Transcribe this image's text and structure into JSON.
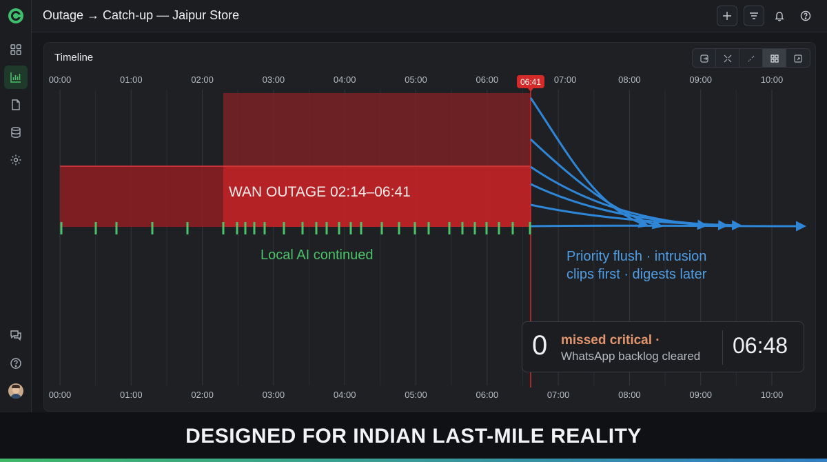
{
  "header": {
    "title": "Outage → Catch-up — Jaipur Store"
  },
  "panel": {
    "title": "Timeline",
    "ticks": [
      "00:00",
      "01:00",
      "02:00",
      "03:00",
      "04:00",
      "05:00",
      "06:00",
      "07:00",
      "08:00",
      "09:00",
      "10:00"
    ],
    "marker_label": "06:41",
    "outage_label": "WAN OUTAGE 02:14–06:41",
    "local_label": "Local AI continued",
    "flush_line1": "Priority flush · intrusion",
    "flush_line2": "clips first · digests later"
  },
  "summary": {
    "count": "0",
    "critical": "missed critical ·",
    "subtitle": "WhatsApp backlog cleared",
    "time": "06:48"
  },
  "banner": {
    "text": "DESIGNED FOR INDIAN LAST-MILE REALITY"
  },
  "colors": {
    "accent_green": "#4cc26a",
    "outage_red": "#d32a2a",
    "flush_blue": "#2f86d6"
  },
  "icons": [
    "logo-icon",
    "grid-icon",
    "chart-icon",
    "document-icon",
    "database-icon",
    "gear-icon",
    "chat-icon",
    "help-icon",
    "plus-icon",
    "filter-icon",
    "bell-icon",
    "help-icon"
  ]
}
